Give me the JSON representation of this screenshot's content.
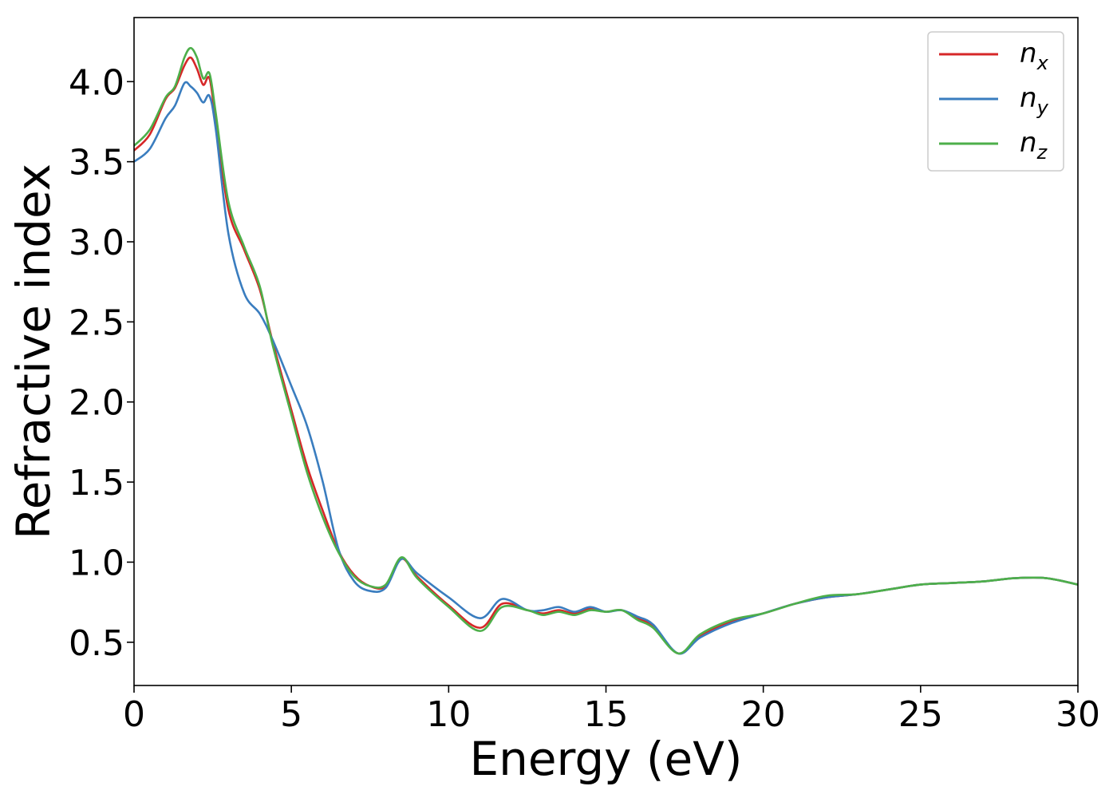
{
  "chart_data": {
    "type": "line",
    "title": "",
    "xlabel": "Energy (eV)",
    "ylabel": "Refractive index",
    "xlim": [
      0,
      30
    ],
    "ylim": [
      0.23,
      4.4
    ],
    "xticks": [
      0,
      5,
      10,
      15,
      20,
      25,
      30
    ],
    "xtick_labels": [
      "0",
      "5",
      "10",
      "15",
      "20",
      "25",
      "30"
    ],
    "yticks": [
      0.5,
      1.0,
      1.5,
      2.0,
      2.5,
      3.0,
      3.5,
      4.0
    ],
    "ytick_labels": [
      "0.5",
      "1.0",
      "1.5",
      "2.0",
      "2.5",
      "3.0",
      "3.5",
      "4.0"
    ],
    "grid": false,
    "legend_position": "top-right",
    "series": [
      {
        "name": "n",
        "subscript": "x",
        "color": "#d62728",
        "x": [
          0,
          0.5,
          1.0,
          1.3,
          1.6,
          1.8,
          2.0,
          2.2,
          2.4,
          2.6,
          3.0,
          3.5,
          4.0,
          4.4,
          5.0,
          5.5,
          6.0,
          6.5,
          7.0,
          7.5,
          8.0,
          8.5,
          9.0,
          10.0,
          11.0,
          11.7,
          12.5,
          13.0,
          13.5,
          14.0,
          14.5,
          15.0,
          15.5,
          16.0,
          16.5,
          17.3,
          18.0,
          19.0,
          20.0,
          21.0,
          22.0,
          23.0,
          24.0,
          25.0,
          26.0,
          27.0,
          28.0,
          29.0,
          30.0
        ],
        "y": [
          3.57,
          3.67,
          3.89,
          3.96,
          4.1,
          4.15,
          4.08,
          3.98,
          4.02,
          3.75,
          3.2,
          2.95,
          2.7,
          2.38,
          1.95,
          1.6,
          1.32,
          1.07,
          0.92,
          0.85,
          0.85,
          1.02,
          0.91,
          0.73,
          0.59,
          0.74,
          0.7,
          0.68,
          0.7,
          0.68,
          0.71,
          0.69,
          0.7,
          0.65,
          0.6,
          0.43,
          0.54,
          0.63,
          0.68,
          0.74,
          0.78,
          0.8,
          0.83,
          0.86,
          0.87,
          0.88,
          0.9,
          0.9,
          0.86
        ]
      },
      {
        "name": "n",
        "subscript": "y",
        "color": "#3a7dbf",
        "x": [
          0,
          0.5,
          1.0,
          1.3,
          1.6,
          1.8,
          2.0,
          2.2,
          2.4,
          2.6,
          3.0,
          3.5,
          4.0,
          4.4,
          5.0,
          5.5,
          6.0,
          6.5,
          7.0,
          7.5,
          8.0,
          8.5,
          9.0,
          10.0,
          11.0,
          11.7,
          12.5,
          13.0,
          13.5,
          14.0,
          14.5,
          15.0,
          15.5,
          16.0,
          16.5,
          17.3,
          18.0,
          19.0,
          20.0,
          21.0,
          22.0,
          23.0,
          24.0,
          25.0,
          26.0,
          27.0,
          28.0,
          29.0,
          30.0
        ],
        "y": [
          3.5,
          3.58,
          3.77,
          3.85,
          3.99,
          3.97,
          3.93,
          3.87,
          3.91,
          3.7,
          3.05,
          2.68,
          2.55,
          2.39,
          2.1,
          1.85,
          1.5,
          1.08,
          0.88,
          0.82,
          0.84,
          1.02,
          0.93,
          0.78,
          0.65,
          0.77,
          0.7,
          0.7,
          0.72,
          0.69,
          0.72,
          0.69,
          0.7,
          0.66,
          0.61,
          0.43,
          0.53,
          0.62,
          0.68,
          0.74,
          0.78,
          0.8,
          0.83,
          0.86,
          0.87,
          0.88,
          0.9,
          0.9,
          0.86
        ]
      },
      {
        "name": "n",
        "subscript": "z",
        "color": "#4daf4a",
        "x": [
          0,
          0.5,
          1.0,
          1.3,
          1.6,
          1.8,
          2.0,
          2.2,
          2.4,
          2.6,
          3.0,
          3.5,
          4.0,
          4.4,
          5.0,
          5.5,
          6.0,
          6.5,
          7.0,
          7.5,
          8.0,
          8.5,
          9.0,
          10.0,
          11.0,
          11.7,
          12.5,
          13.0,
          13.5,
          14.0,
          14.5,
          15.0,
          15.5,
          16.0,
          16.5,
          17.3,
          18.0,
          19.0,
          20.0,
          21.0,
          22.0,
          23.0,
          24.0,
          25.0,
          26.0,
          27.0,
          28.0,
          29.0,
          30.0
        ],
        "y": [
          3.6,
          3.7,
          3.9,
          3.97,
          4.15,
          4.21,
          4.15,
          4.02,
          4.05,
          3.8,
          3.25,
          2.97,
          2.72,
          2.36,
          1.92,
          1.56,
          1.28,
          1.06,
          0.91,
          0.85,
          0.86,
          1.03,
          0.9,
          0.72,
          0.57,
          0.72,
          0.7,
          0.67,
          0.69,
          0.67,
          0.7,
          0.69,
          0.7,
          0.64,
          0.59,
          0.43,
          0.55,
          0.64,
          0.68,
          0.74,
          0.79,
          0.8,
          0.83,
          0.86,
          0.87,
          0.88,
          0.9,
          0.9,
          0.86
        ]
      }
    ]
  }
}
